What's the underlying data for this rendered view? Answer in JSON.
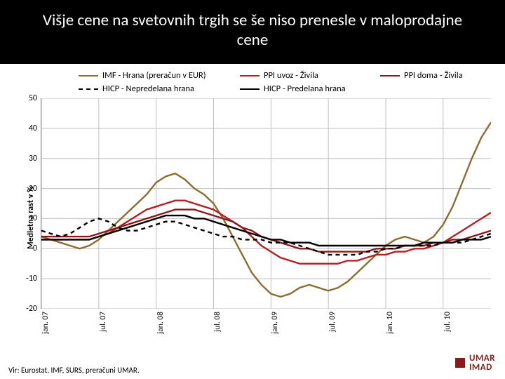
{
  "title": "Višje cene na svetovnih trgih se še niso prenesle v maloprodajne cene",
  "ylabel": "Medletna rast v %",
  "source": "Vir: Eurostat, IMF, SURS, preračuni UMAR.",
  "logo": {
    "line1": "UMAR",
    "line2": "IMAD"
  },
  "chart": {
    "type": "line",
    "x_count": 48,
    "xticks": [
      {
        "i": 0,
        "label": "jan. 07"
      },
      {
        "i": 6,
        "label": "jul. 07"
      },
      {
        "i": 12,
        "label": "jan. 08"
      },
      {
        "i": 18,
        "label": "jul. 08"
      },
      {
        "i": 24,
        "label": "jan. 09"
      },
      {
        "i": 30,
        "label": "jul. 09"
      },
      {
        "i": 36,
        "label": "jan. 10"
      },
      {
        "i": 42,
        "label": "jul. 10"
      }
    ],
    "ylim": [
      -20,
      50
    ],
    "ytick_step": 10,
    "grid_color": "#bfbfbf",
    "background": "#ffffff",
    "legend": [
      {
        "key": "imf",
        "label": "IMF - Hrana (preračun v EUR)",
        "color": "#8a6d2f",
        "dash": false
      },
      {
        "key": "ppi_uvoz",
        "label": "PPI uvoz - Živila",
        "color": "#b02025",
        "dash": false
      },
      {
        "key": "ppi_doma",
        "label": "PPI doma - Živila",
        "color": "#8a1a1a",
        "dash": false
      },
      {
        "key": "hicp_nepred",
        "label": "HICP - Nepredelana hrana",
        "color": "#000000",
        "dash": true
      },
      {
        "key": "hicp_pred",
        "label": "HICP - Predelana hrana",
        "color": "#000000",
        "dash": false
      }
    ],
    "series": {
      "imf": [
        4,
        3,
        2,
        1,
        0,
        1,
        3,
        6,
        9,
        12,
        15,
        18,
        22,
        24,
        25,
        23,
        20,
        18,
        15,
        10,
        4,
        -2,
        -8,
        -12,
        -15,
        -16,
        -15,
        -13,
        -12,
        -13,
        -14,
        -13,
        -11,
        -8,
        -5,
        -2,
        1,
        3,
        4,
        3,
        2,
        4,
        8,
        14,
        22,
        30,
        37,
        42
      ],
      "ppi_uvoz": [
        3,
        3,
        3,
        3,
        3,
        3,
        4,
        5,
        7,
        9,
        11,
        13,
        14,
        15,
        16,
        16,
        15,
        14,
        13,
        11,
        9,
        7,
        4,
        1,
        -1,
        -3,
        -4,
        -5,
        -5,
        -5,
        -5,
        -5,
        -4,
        -4,
        -3,
        -2,
        -2,
        -1,
        -1,
        0,
        0,
        1,
        2,
        4,
        6,
        8,
        10,
        12
      ],
      "ppi_doma": [
        4,
        4,
        4,
        4,
        4,
        4,
        5,
        6,
        7,
        8,
        9,
        10,
        11,
        12,
        13,
        13,
        13,
        12,
        11,
        10,
        9,
        7,
        6,
        4,
        3,
        2,
        1,
        0,
        0,
        -1,
        -1,
        -1,
        -1,
        -1,
        -1,
        0,
        0,
        0,
        1,
        1,
        1,
        2,
        2,
        3,
        3,
        4,
        5,
        6
      ],
      "hicp_nepred": [
        6,
        5,
        4,
        5,
        7,
        9,
        10,
        9,
        7,
        6,
        6,
        7,
        8,
        9,
        9,
        8,
        7,
        6,
        5,
        4,
        4,
        3,
        3,
        3,
        2,
        2,
        2,
        1,
        0,
        -1,
        -2,
        -2,
        -2,
        -2,
        -1,
        -1,
        0,
        0,
        1,
        1,
        1,
        1,
        2,
        2,
        2,
        3,
        4,
        5
      ],
      "hicp_pred": [
        3,
        3,
        3,
        3,
        3,
        3,
        4,
        5,
        6,
        7,
        8,
        9,
        10,
        11,
        11,
        11,
        10,
        10,
        9,
        8,
        7,
        6,
        5,
        4,
        3,
        3,
        2,
        2,
        2,
        1,
        1,
        1,
        1,
        1,
        1,
        1,
        1,
        1,
        1,
        1,
        2,
        2,
        2,
        2,
        3,
        3,
        3,
        4
      ]
    }
  }
}
